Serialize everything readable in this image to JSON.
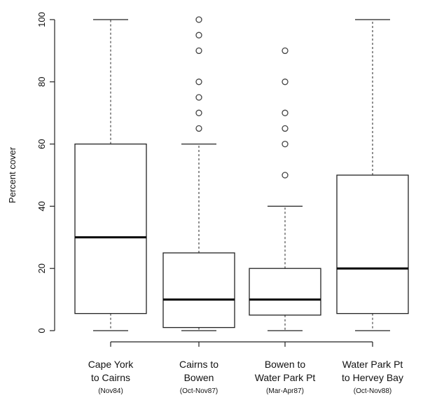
{
  "chart_data": {
    "type": "boxplot",
    "title": "",
    "xlabel": "",
    "ylabel": "Percent cover",
    "ylim": [
      0,
      100
    ],
    "yticks": [
      0,
      20,
      40,
      60,
      80,
      100
    ],
    "grid": false,
    "categories": [
      {
        "line1": "Cape York",
        "line2": "to Cairns",
        "sub": "(Nov84)"
      },
      {
        "line1": "Cairns to",
        "line2": "Bowen",
        "sub": "(Oct-Nov87)"
      },
      {
        "line1": "Bowen to",
        "line2": "Water Park Pt",
        "sub": "(Mar-Apr87)"
      },
      {
        "line1": "Water Park Pt",
        "line2": "to Hervey Bay",
        "sub": "(Oct-Nov88)"
      }
    ],
    "boxes": [
      {
        "whisker_low": 0,
        "q1": 5.5,
        "median": 30,
        "q3": 60,
        "whisker_high": 100,
        "outliers": []
      },
      {
        "whisker_low": 0,
        "q1": 1,
        "median": 10,
        "q3": 25,
        "whisker_high": 60,
        "outliers": [
          65,
          70,
          75,
          80,
          90,
          95,
          100
        ]
      },
      {
        "whisker_low": 0,
        "q1": 5,
        "median": 10,
        "q3": 20,
        "whisker_high": 40,
        "outliers": [
          50,
          60,
          65,
          70,
          80,
          90
        ]
      },
      {
        "whisker_low": 0,
        "q1": 5.5,
        "median": 20,
        "q3": 50,
        "whisker_high": 100,
        "outliers": []
      }
    ]
  }
}
